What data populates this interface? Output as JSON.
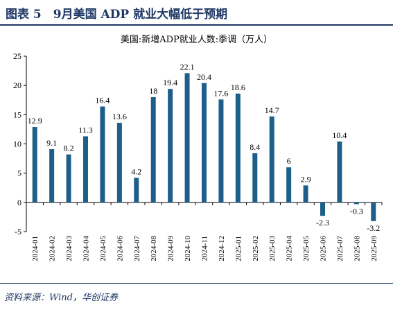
{
  "header": {
    "title": "图表 5　9月美国 ADP 就业大幅低于预期"
  },
  "colors": {
    "bar": "#1d5f8a",
    "header": "#1f3864"
  },
  "chart_data": {
    "type": "bar",
    "title": "美国:新增ADP就业人数:季调（万人）",
    "categories": [
      "2024-01",
      "2024-02",
      "2024-03",
      "2024-04",
      "2024-05",
      "2024-06",
      "2024-07",
      "2024-08",
      "2024-09",
      "2024-10",
      "2024-11",
      "2024-12",
      "2025-01",
      "2025-02",
      "2025-03",
      "2025-04",
      "2025-05",
      "2025-06",
      "2025-07",
      "2025-08",
      "2025-09"
    ],
    "values": [
      12.9,
      9.1,
      8.2,
      11.3,
      16.4,
      13.6,
      4.2,
      18,
      19.4,
      22.1,
      20.4,
      17.6,
      18.6,
      8.4,
      14.7,
      6,
      2.9,
      -2.3,
      10.4,
      -0.3,
      -3.2
    ],
    "data_labels": [
      "12.9",
      "9.1",
      "8.2",
      "11.3",
      "16.4",
      "13.6",
      "4.2",
      "18",
      "19.4",
      "22.1",
      "20.4",
      "17.6",
      "18.6",
      "8.4",
      "14.7",
      "6",
      "2.9",
      "-2.3",
      "10.4",
      "-0.3",
      "-3.2"
    ],
    "ylim": [
      -5,
      25
    ],
    "yticks": [
      -5,
      0,
      5,
      10,
      15,
      20,
      25
    ],
    "grid": false,
    "legend": "none"
  },
  "footer": {
    "source": "资料来源：Wind，华创证券"
  }
}
